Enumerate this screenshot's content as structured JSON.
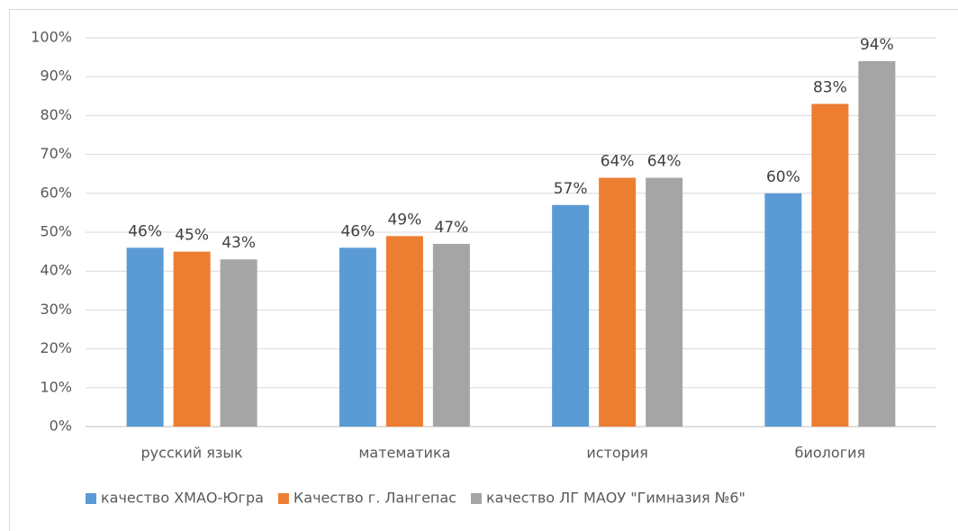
{
  "chart_data": {
    "type": "bar",
    "categories": [
      "русский язык",
      "математика",
      "история",
      "биология"
    ],
    "series": [
      {
        "name": "качество ХМАО-Югра",
        "color": "#5b9bd5",
        "values": [
          46,
          46,
          57,
          60
        ],
        "value_labels": [
          "46%",
          "46%",
          "57%",
          "60%"
        ]
      },
      {
        "name": "Качество г. Лангепас",
        "color": "#ed7d31",
        "values": [
          45,
          49,
          64,
          83
        ],
        "value_labels": [
          "45%",
          "49%",
          "64%",
          "83%"
        ]
      },
      {
        "name": "качество ЛГ МАОУ \"Гимназия №6\"",
        "color": "#a5a5a5",
        "values": [
          43,
          47,
          64,
          94
        ],
        "value_labels": [
          "43%",
          "47%",
          "64%",
          "94%"
        ]
      }
    ],
    "ylim": [
      0,
      100
    ],
    "yticks": [
      {
        "value": 0,
        "label": "0%"
      },
      {
        "value": 10,
        "label": "10%"
      },
      {
        "value": 20,
        "label": "20%"
      },
      {
        "value": 30,
        "label": "30%"
      },
      {
        "value": 40,
        "label": "40%"
      },
      {
        "value": 50,
        "label": "50%"
      },
      {
        "value": 60,
        "label": "60%"
      },
      {
        "value": 70,
        "label": "70%"
      },
      {
        "value": 80,
        "label": "80%"
      },
      {
        "value": 90,
        "label": "90%"
      },
      {
        "value": 100,
        "label": "100%"
      }
    ],
    "grid": true,
    "legend": "bottom"
  }
}
